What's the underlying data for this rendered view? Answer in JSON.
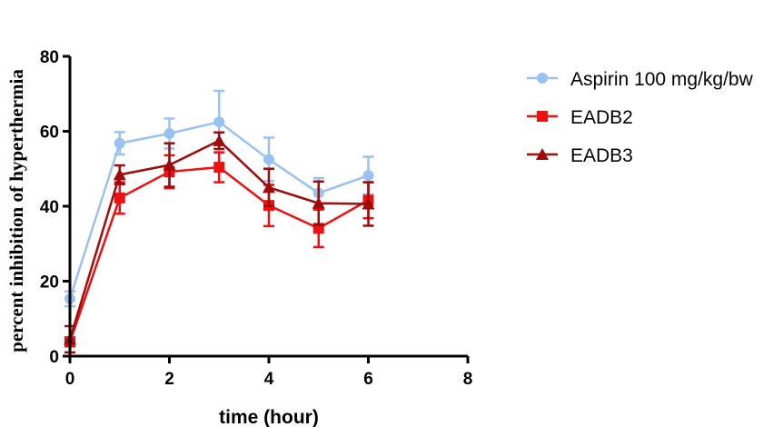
{
  "chart_data": {
    "type": "line",
    "xlabel": "time (hour)",
    "ylabel": "percent inhibition of hyperthermia",
    "xlim": [
      0,
      8
    ],
    "ylim": [
      0,
      80
    ],
    "xticks": [
      0,
      2,
      4,
      6,
      8
    ],
    "yticks": [
      0,
      20,
      40,
      60,
      80
    ],
    "x": [
      0,
      1,
      2,
      3,
      4,
      5,
      6
    ],
    "grid": false,
    "legend_position": "right",
    "series": [
      {
        "name": "Aspirin 100 mg/kg/bw",
        "color": "#99c2f2",
        "marker": "circle",
        "values": [
          15.3,
          56.8,
          59.4,
          62.5,
          52.5,
          43.5,
          48.2
        ],
        "errors": [
          2.0,
          3.0,
          4.0,
          8.3,
          5.8,
          4.0,
          5.0
        ]
      },
      {
        "name": "EADB2",
        "color": "#ee1111",
        "marker": "square",
        "values": [
          3.8,
          42.2,
          49.2,
          50.4,
          40.2,
          34.1,
          41.6
        ],
        "errors": [
          1.2,
          4.2,
          4.4,
          4.0,
          5.5,
          5.0,
          4.8
        ]
      },
      {
        "name": "EADB3",
        "color": "#9e0b0b",
        "marker": "triangle",
        "values": [
          4.5,
          48.4,
          51.0,
          57.5,
          45.0,
          40.8,
          40.6
        ],
        "errors": [
          3.5,
          2.5,
          5.8,
          2.2,
          5.0,
          5.8,
          5.8
        ]
      }
    ]
  }
}
